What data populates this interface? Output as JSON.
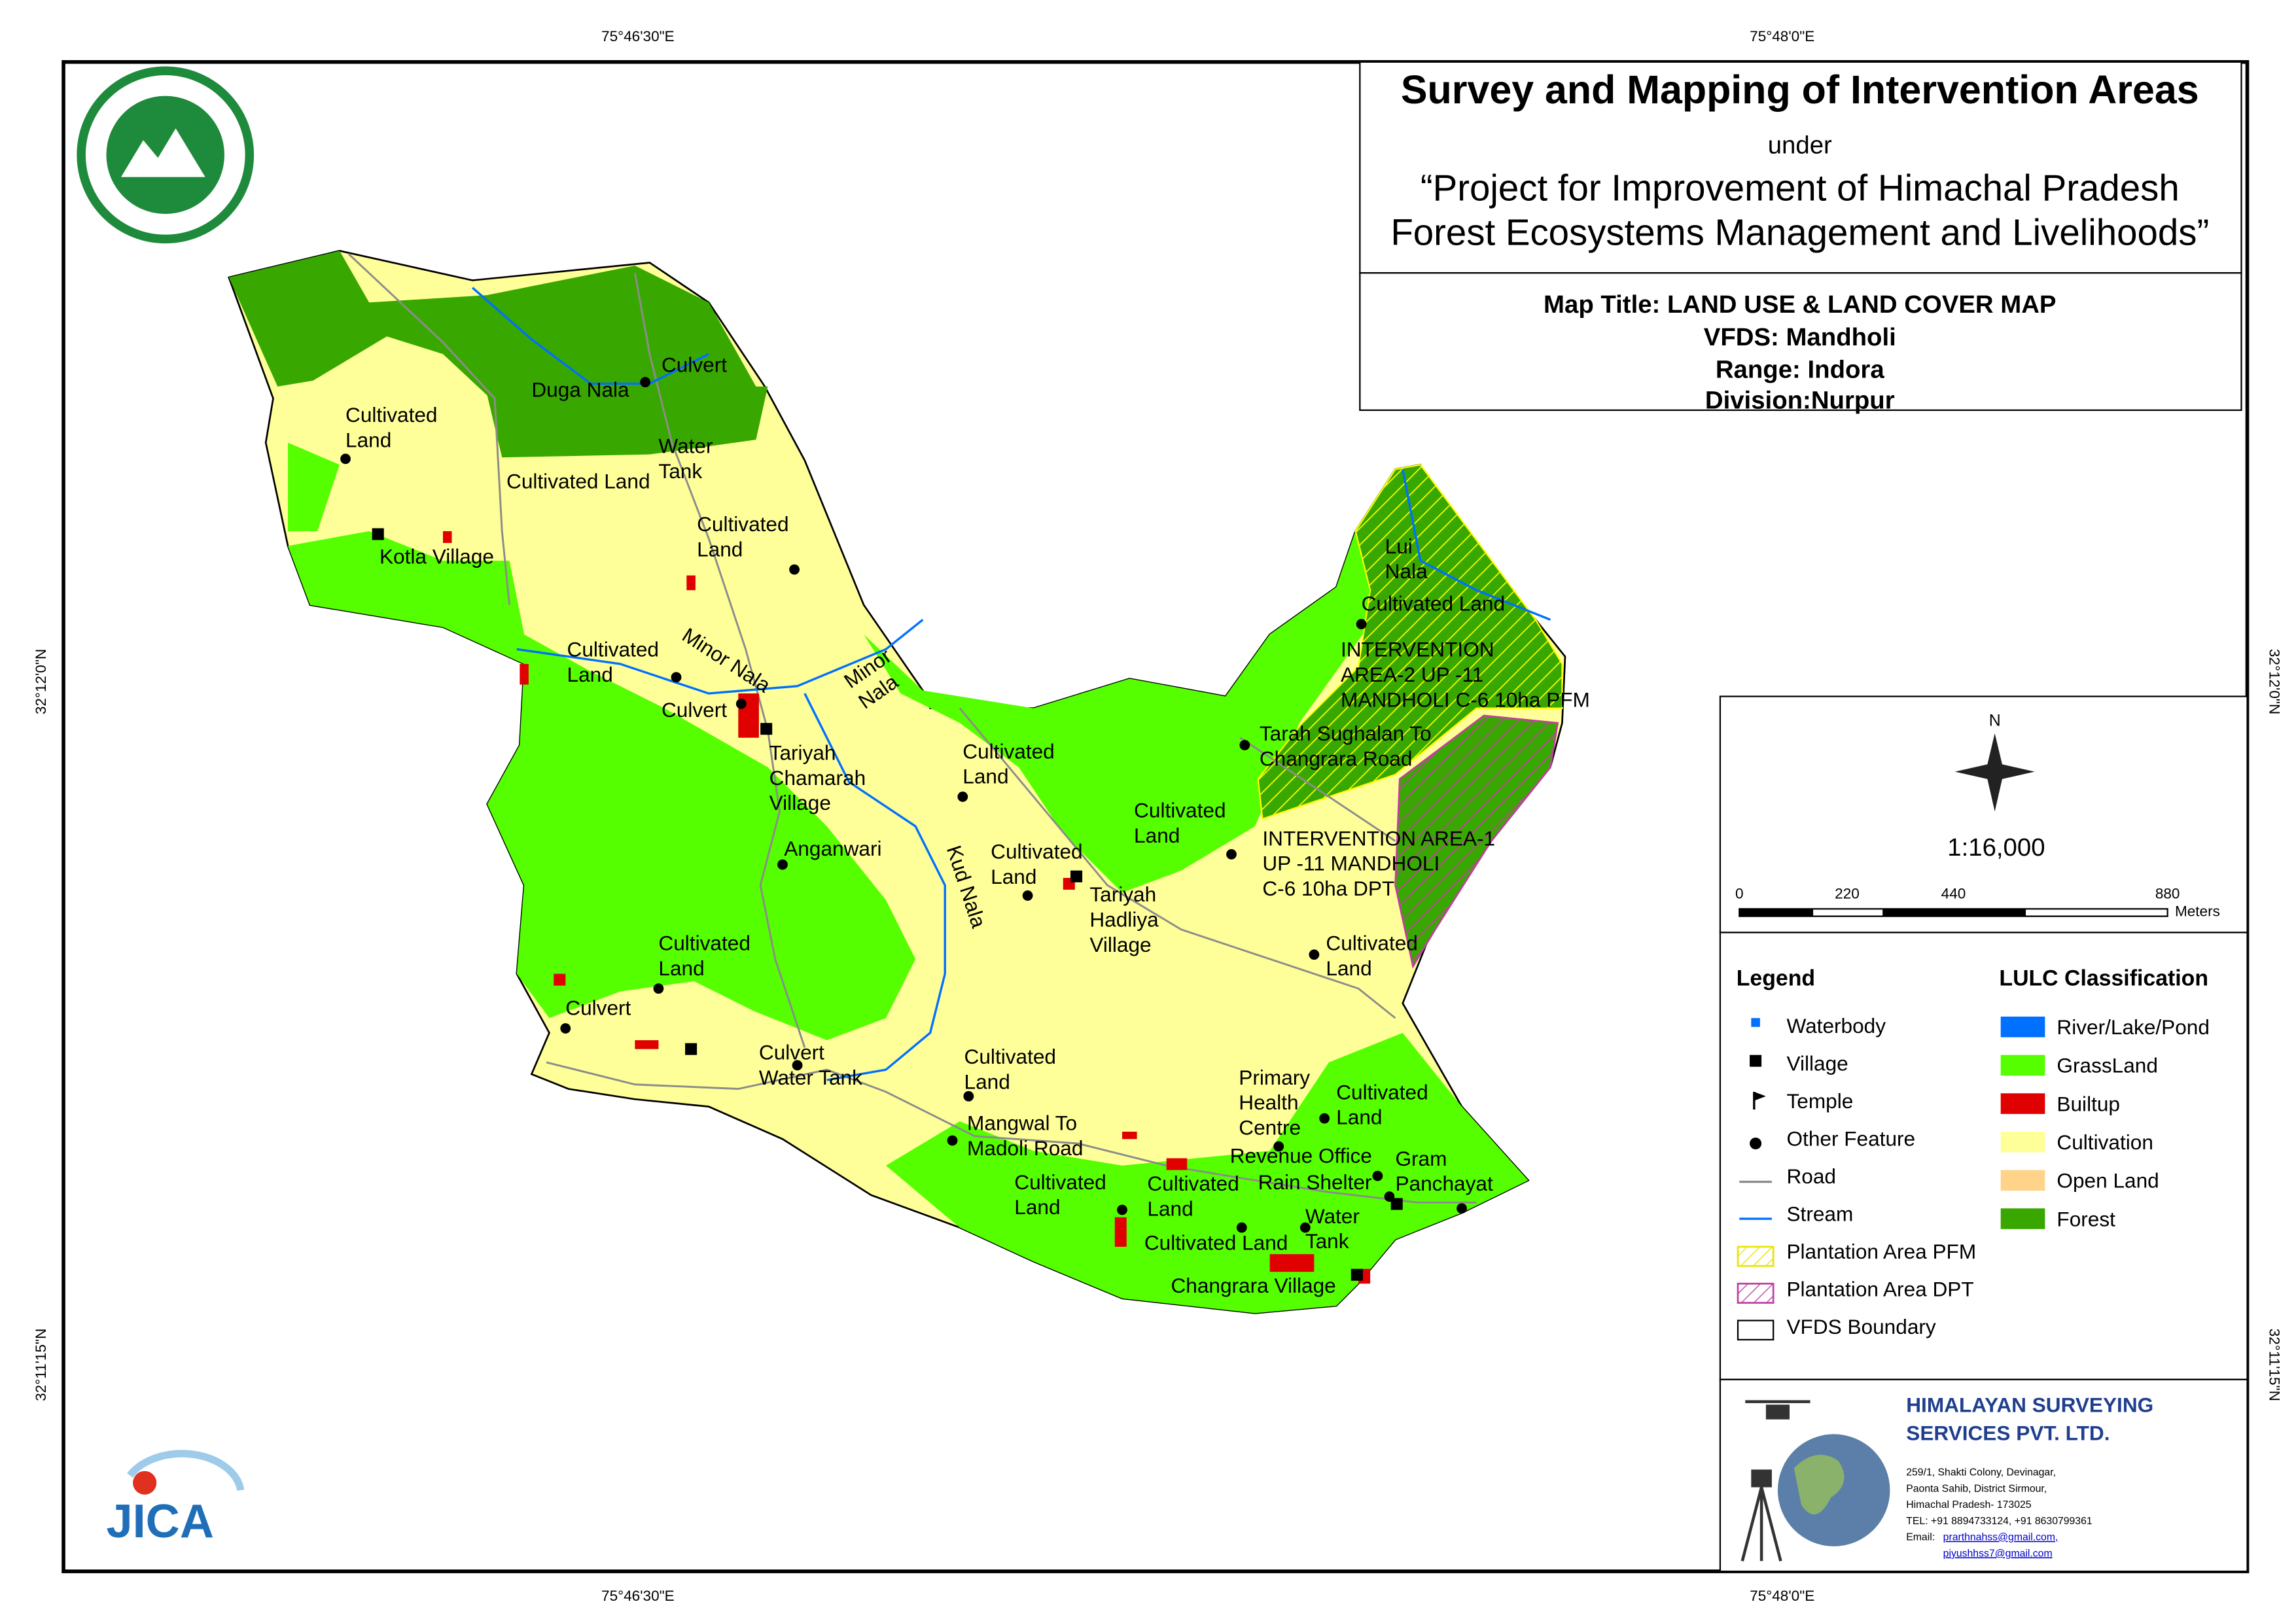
{
  "coordinates": {
    "top": [
      "75°46'30\"E",
      "75°48'0\"E"
    ],
    "bottom": [
      "75°46'30\"E",
      "75°48'0\"E"
    ],
    "left": [
      "32°12'0\"N",
      "32°11'15\"N"
    ],
    "right": [
      "32°12'0\"N",
      "32°11'15\"N"
    ]
  },
  "header": {
    "title": "Survey and Mapping of Intervention Areas",
    "under": "under",
    "project_line_1": "“Project for Improvement of Himachal Pradesh",
    "project_line_2": "Forest Ecosystems Management and Livelihoods”"
  },
  "map_info": [
    "Map Title: LAND USE & LAND COVER MAP",
    "VFDS: Mandholi",
    "Range: Indora",
    "Division:Nurpur"
  ],
  "north": "N",
  "scale": {
    "ratio": "1:16,000",
    "ticks": [
      "0",
      "220",
      "440",
      "880"
    ],
    "unit": "Meters"
  },
  "legend": {
    "title": "Legend",
    "items": [
      "Waterbody",
      "Village",
      "Temple",
      "Other Feature",
      "Road",
      "Stream",
      "Plantation Area PFM",
      "Plantation Area DPT",
      "VFDS Boundary"
    ]
  },
  "lulc": {
    "title": "LULC Classification",
    "items": [
      "River/Lake/Pond",
      "GrassLand",
      "Builtup",
      "Cultivation",
      "Open Land",
      "Forest"
    ]
  },
  "company": {
    "name_1": "HIMALAYAN SURVEYING",
    "name_2": "SERVICES PVT. LTD.",
    "address": [
      "259/1, Shakti Colony, Devinagar,",
      "Paonta Sahib, District Sirmour,",
      "Himachal Pradesh- 173025",
      "TEL: +91 8894733124, +91 8630799361"
    ],
    "email_label": "Email:",
    "emails": [
      "prarthnahss@gmail.com,",
      "piyushhss7@gmail.com"
    ]
  },
  "logos": {
    "jica": "JICA"
  },
  "map_labels": [
    [
      "Duga Nala"
    ],
    [
      "Culvert"
    ],
    [
      "Cultivated",
      "Land"
    ],
    [
      "Cultivated Land"
    ],
    [
      "Water",
      "Tank"
    ],
    [
      "Cultivated",
      "Land"
    ],
    [
      "Kotla Village"
    ],
    [
      "Cultivated",
      "Land"
    ],
    [
      "Minor Nala"
    ],
    [
      "Culvert"
    ],
    [
      "Minor",
      "Nala"
    ],
    [
      "Tariyah",
      "Chamarah",
      "Village"
    ],
    [
      "Anganwari"
    ],
    [
      "Kud Nala"
    ],
    [
      "Cultivated",
      "Land"
    ],
    [
      "Cultivated",
      "Land"
    ],
    [
      "Tariyah",
      "Hadliya",
      "Village"
    ],
    [
      "Cultivated",
      "Land"
    ],
    [
      "Tarah Sughalan To",
      "Changrara Road"
    ],
    [
      "INTERVENTION AREA-1",
      "UP -11 MANDHOLI",
      "C-6 10ha DPT"
    ],
    [
      "Cultivated",
      "Land"
    ],
    [
      "Lui",
      "Nala"
    ],
    [
      "Cultivated Land"
    ],
    [
      "INTERVENTION",
      "AREA-2 UP -11",
      "MANDHOLI C-6 10ha PFM"
    ],
    [
      "Cultivated",
      "Land"
    ],
    [
      "Culvert"
    ],
    [
      "Culvert",
      "Water Tank"
    ],
    [
      "Cultivated",
      "Land"
    ],
    [
      "Mangwal To",
      "Madoli Road"
    ],
    [
      "Primary",
      "Health",
      "Centre"
    ],
    [
      "Cultivated",
      "Land"
    ],
    [
      "Revenue Office"
    ],
    [
      "Gram",
      "Panchayat"
    ],
    [
      "Rain Shelter"
    ],
    [
      "Cultivated",
      "Land"
    ],
    [
      "Cultivated",
      "Land"
    ],
    [
      "Water",
      "Tank"
    ],
    [
      "Cultivated Land"
    ],
    [
      "Changrara Village"
    ]
  ]
}
